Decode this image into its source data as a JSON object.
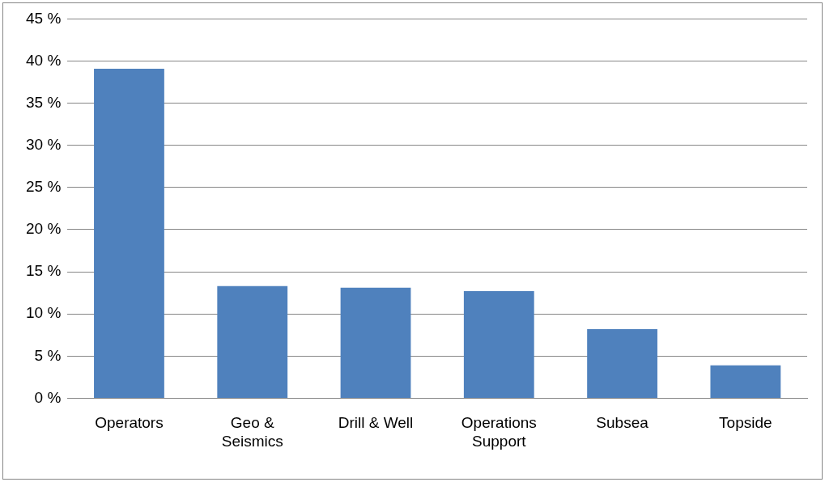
{
  "chart_data": {
    "type": "bar",
    "categories": [
      "Operators",
      "Geo & Seismics",
      "Drill & Well",
      "Operations Support",
      "Subsea",
      "Topside"
    ],
    "values": [
      39.1,
      13.3,
      13.1,
      12.7,
      8.2,
      3.9
    ],
    "color": "#4f81bd",
    "ylim": [
      0,
      45
    ],
    "yticks": [
      {
        "value": 0,
        "label": "0 %"
      },
      {
        "value": 5,
        "label": "5 %"
      },
      {
        "value": 10,
        "label": "10 %"
      },
      {
        "value": 15,
        "label": "15 %"
      },
      {
        "value": 20,
        "label": "20 %"
      },
      {
        "value": 25,
        "label": "25 %"
      },
      {
        "value": 30,
        "label": "30 %"
      },
      {
        "value": 35,
        "label": "35 %"
      },
      {
        "value": 40,
        "label": "40 %"
      },
      {
        "value": 45,
        "label": "45 %"
      }
    ],
    "grid": "y",
    "legend": false
  }
}
